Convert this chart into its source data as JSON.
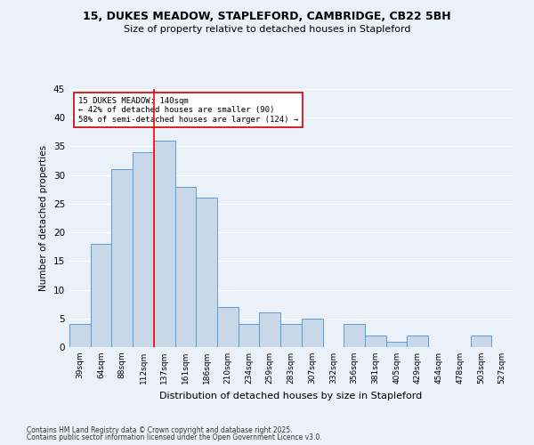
{
  "title": "15, DUKES MEADOW, STAPLEFORD, CAMBRIDGE, CB22 5BH",
  "subtitle": "Size of property relative to detached houses in Stapleford",
  "xlabel": "Distribution of detached houses by size in Stapleford",
  "ylabel": "Number of detached properties",
  "categories": [
    "39sqm",
    "64sqm",
    "88sqm",
    "112sqm",
    "137sqm",
    "161sqm",
    "186sqm",
    "210sqm",
    "234sqm",
    "259sqm",
    "283sqm",
    "307sqm",
    "332sqm",
    "356sqm",
    "381sqm",
    "405sqm",
    "429sqm",
    "454sqm",
    "478sqm",
    "503sqm",
    "527sqm"
  ],
  "values": [
    4,
    18,
    31,
    34,
    36,
    28,
    26,
    7,
    4,
    6,
    4,
    5,
    0,
    4,
    2,
    1,
    2,
    0,
    0,
    2,
    0
  ],
  "bar_color": "#C8D8E8",
  "bar_edge_color": "#5B9BD5",
  "background_color": "#EBF1F8",
  "grid_color": "#ffffff",
  "red_line_index": 4,
  "annotation_text": "15 DUKES MEADOW: 140sqm\n← 42% of detached houses are smaller (90)\n58% of semi-detached houses are larger (124) →",
  "annotation_box_color": "#ffffff",
  "annotation_box_edge": "#cc0000",
  "ylim": [
    0,
    45
  ],
  "yticks": [
    0,
    5,
    10,
    15,
    20,
    25,
    30,
    35,
    40,
    45
  ],
  "footer1": "Contains HM Land Registry data © Crown copyright and database right 2025.",
  "footer2": "Contains public sector information licensed under the Open Government Licence v3.0.",
  "fig_width": 6.0,
  "fig_height": 5.0,
  "dpi": 100
}
